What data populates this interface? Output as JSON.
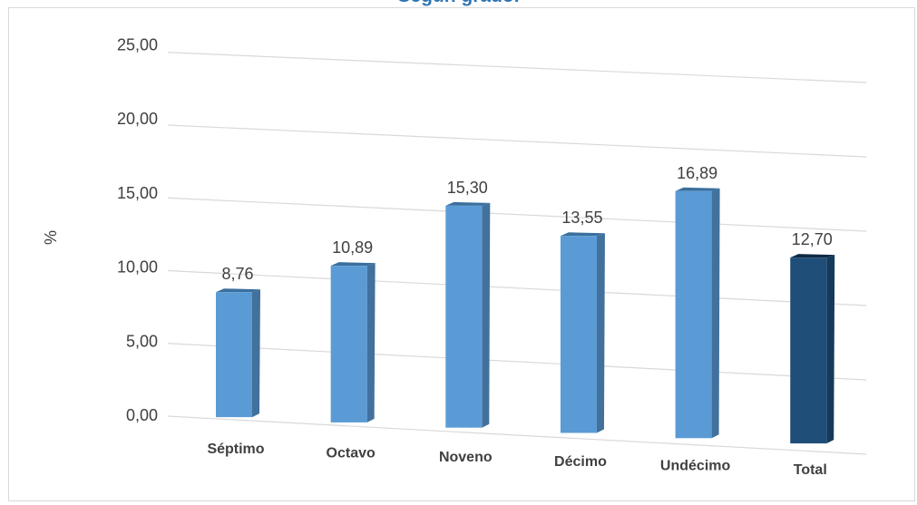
{
  "chart_data": {
    "type": "bar",
    "title": "Según grado.",
    "categories": [
      "Séptimo",
      "Octavo",
      "Noveno",
      "Décimo",
      "Undécimo",
      "Total"
    ],
    "values": [
      8.76,
      10.89,
      15.3,
      13.55,
      16.89,
      12.7
    ],
    "value_labels": [
      "8,76",
      "10,89",
      "15,30",
      "13,55",
      "16,89",
      "12,70"
    ],
    "ylabel": "%",
    "xlabel": "",
    "ylim": [
      0,
      25
    ],
    "yticks": [
      "0,00",
      "5,00",
      "10,00",
      "15,00",
      "20,00",
      "25,00"
    ],
    "grid": true,
    "legend": "none",
    "colors": {
      "bar": "#5b9bd5",
      "total_bar": "#1f4e79",
      "grid": "#d9d9d9",
      "text": "#404040",
      "title": "#2e75b6"
    }
  }
}
